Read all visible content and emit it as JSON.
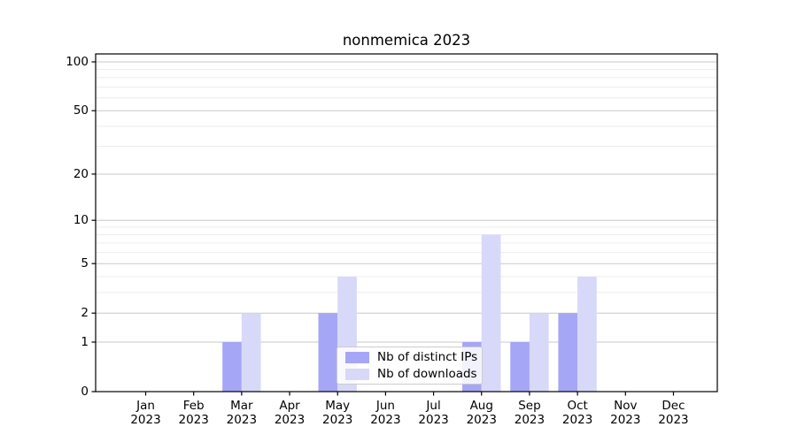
{
  "figure": {
    "background": "#ffffff"
  },
  "chart_data": {
    "type": "bar",
    "title": "nonmemica 2023",
    "categories": [
      [
        "Jan",
        "2023"
      ],
      [
        "Feb",
        "2023"
      ],
      [
        "Mar",
        "2023"
      ],
      [
        "Apr",
        "2023"
      ],
      [
        "May",
        "2023"
      ],
      [
        "Jun",
        "2023"
      ],
      [
        "Jul",
        "2023"
      ],
      [
        "Aug",
        "2023"
      ],
      [
        "Sep",
        "2023"
      ],
      [
        "Oct",
        "2023"
      ],
      [
        "Nov",
        "2023"
      ],
      [
        "Dec",
        "2023"
      ]
    ],
    "series": [
      {
        "name": "Nb of distinct IPs",
        "color": "#a6a6f7",
        "values": [
          0,
          0,
          1,
          0,
          2,
          0,
          0,
          1,
          1,
          2,
          0,
          0
        ]
      },
      {
        "name": "Nb of downloads",
        "color": "#d8d8f9",
        "values": [
          0,
          0,
          2,
          0,
          4,
          0,
          0,
          8,
          2,
          4,
          0,
          0
        ]
      }
    ],
    "xlabel": "",
    "ylabel": "",
    "yscale": "log10(value+1)",
    "yticks": [
      0,
      1,
      2,
      5,
      10,
      20,
      50,
      100
    ],
    "minor_yticks": [
      3,
      4,
      6,
      7,
      8,
      9,
      30,
      40,
      60,
      70,
      80,
      90
    ],
    "ylim": [
      0,
      112
    ],
    "grid": "horizontal",
    "legend_position": "lower-center",
    "colors": {
      "spine": "#000000",
      "major_grid": "#c8c8c8",
      "minor_grid": "#ebebeb",
      "text": "#000000"
    }
  }
}
